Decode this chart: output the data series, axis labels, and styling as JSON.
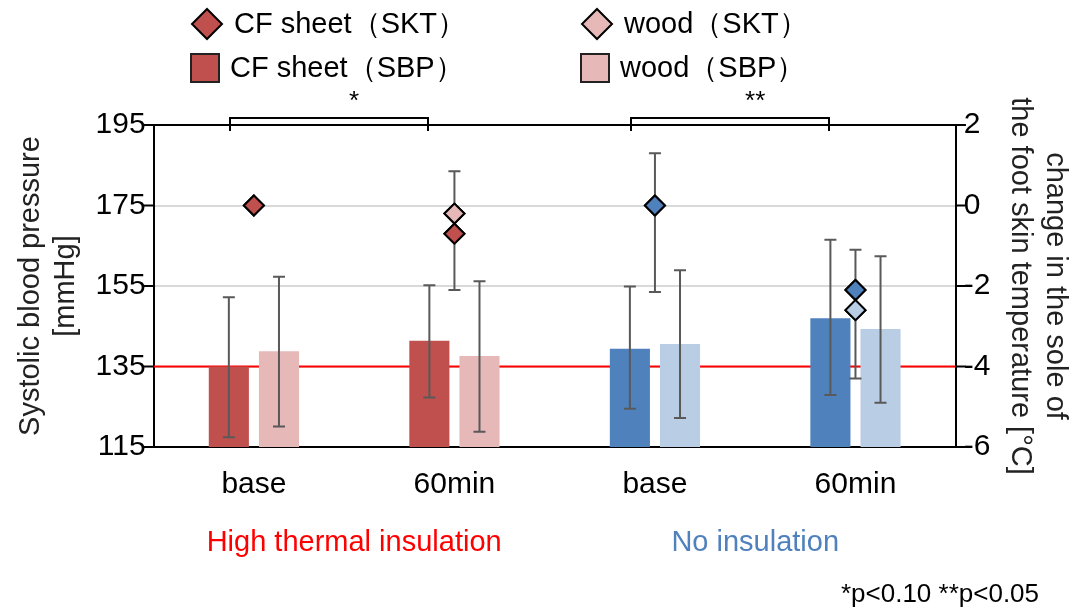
{
  "chart_data": {
    "type": "bar",
    "categories": [
      "base",
      "60min",
      "base",
      "60min"
    ],
    "ylabel": "Systolic blood pressure\n[mmHg]",
    "y2label": "change in the sole of\nthe foot skin temperature [°C]",
    "ylim": [
      115,
      195
    ],
    "yticks": [
      115,
      135,
      155,
      175,
      195
    ],
    "y2lim": [
      -6,
      2
    ],
    "y2ticks": [
      -6,
      -4,
      -2,
      0,
      2
    ],
    "grid": "y",
    "legend": "top",
    "series": [
      {
        "name": "CF sheet（SKT）",
        "type": "scatter",
        "axis": "y2",
        "marker": "diamond",
        "color": "#c0504d",
        "colors": [
          "#c0504d",
          "#c0504d",
          "#4f81bd",
          "#4f81bd"
        ],
        "values": [
          0,
          -0.7,
          0,
          -2.1
        ],
        "errors": [
          null,
          [
            -2.1,
            -0.7
          ],
          [
            -2.15,
            1.3
          ],
          [
            -2.1,
            -1.1
          ]
        ]
      },
      {
        "name": "wood（SKT）",
        "type": "scatter",
        "axis": "y2",
        "marker": "diamond",
        "color": "#e6b9b8",
        "colors": [
          "#e6b9b8",
          "#e6b9b8",
          "#b9cde5",
          "#b9cde5"
        ],
        "values": [
          null,
          -0.2,
          null,
          -2.6
        ],
        "errors": [
          null,
          [
            -0.2,
            0.85
          ],
          null,
          [
            -4.3,
            -2.6
          ]
        ]
      },
      {
        "name": "CF sheet（SBP）",
        "type": "bar",
        "color": "#c0504d",
        "colors": [
          "#c0504d",
          "#c0504d",
          "#4f81bd",
          "#4f81bd"
        ],
        "values": [
          135,
          141.4,
          139.4,
          147
        ],
        "errors": [
          [
            117.4,
            152.2
          ],
          [
            127.3,
            155.2
          ],
          [
            124.5,
            154.9
          ],
          [
            127.9,
            166.5
          ]
        ]
      },
      {
        "name": "wood（SBP）",
        "type": "bar",
        "color": "#e6b9b8",
        "colors": [
          "#e6b9b8",
          "#e6b9b8",
          "#b9cde5",
          "#b9cde5"
        ],
        "values": [
          138.8,
          137.6,
          140.6,
          144.3
        ],
        "errors": [
          [
            120.1,
            157.3
          ],
          [
            118.8,
            156.2
          ],
          [
            122.2,
            158.9
          ],
          [
            126,
            162.4
          ]
        ]
      }
    ],
    "ref_lines": [
      {
        "axis": "y",
        "value": 135,
        "color": "#ff0000"
      }
    ],
    "annotations": [
      "*",
      "**",
      "High thermal insulation",
      "No insulation",
      "*p<0.10 **p<0.05"
    ]
  }
}
